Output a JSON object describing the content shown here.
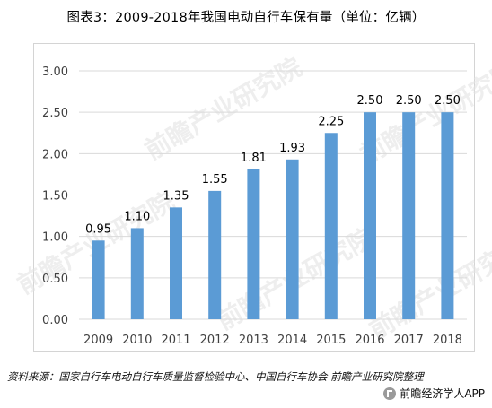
{
  "title": "图表3：2009-2018年我国电动自行车保有量（单位：亿辆）",
  "source": "资料来源：国家自行车电动自行车质量监督检验中心、中国自行车协会 前瞻产业研究院整理",
  "brand": {
    "name": "前瞻经济学人APP",
    "logo_icon": "qianzhan-logo-icon"
  },
  "watermark": {
    "text": "前瞻产业研究院"
  },
  "colors": {
    "bar": "#5b9bd5",
    "grid": "#d9d9d9",
    "axis_text": "#404040",
    "label_text": "#000000"
  },
  "chart_data": {
    "type": "bar",
    "title": "图表3：2009-2018年我国电动自行车保有量（单位：亿辆）",
    "xlabel": "",
    "ylabel": "",
    "categories": [
      "2009",
      "2010",
      "2011",
      "2012",
      "2013",
      "2014",
      "2015",
      "2016",
      "2017",
      "2018"
    ],
    "values": [
      0.95,
      1.1,
      1.35,
      1.55,
      1.81,
      1.93,
      2.25,
      2.5,
      2.5,
      2.5
    ],
    "value_labels": [
      "0.95",
      "1.10",
      "1.35",
      "1.55",
      "1.81",
      "1.93",
      "2.25",
      "2.50",
      "2.50",
      "2.50"
    ],
    "ylim": [
      0,
      3.0
    ],
    "yticks": [
      "0.00",
      "0.50",
      "1.00",
      "1.50",
      "2.00",
      "2.50",
      "3.00"
    ],
    "grid": true,
    "legend": "none"
  }
}
